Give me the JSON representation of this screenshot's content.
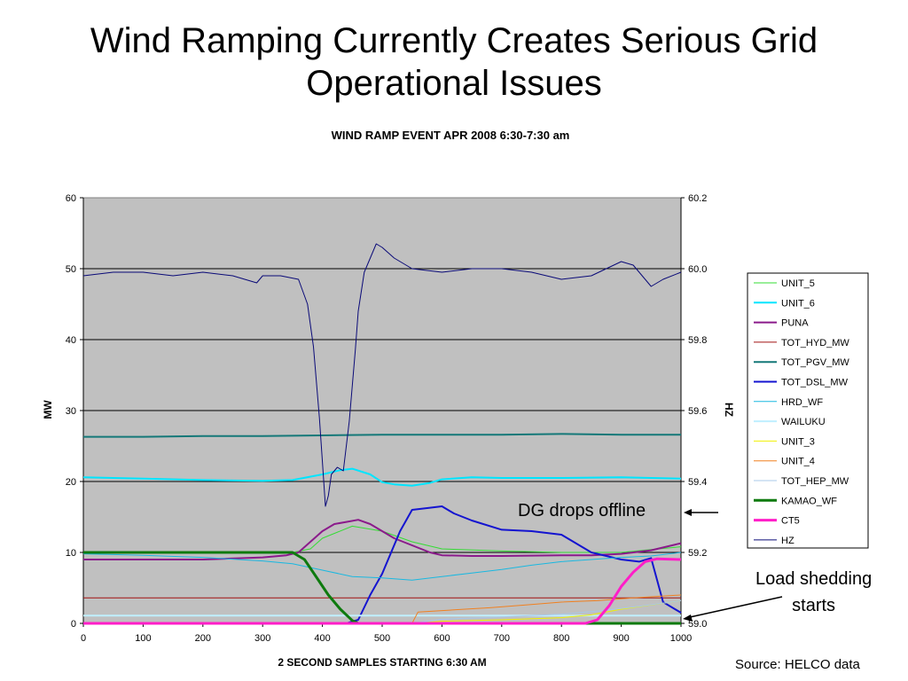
{
  "slide": {
    "title": "Wind Ramping Currently Creates Serious Grid\nOperational Issues",
    "annotation_dg": "DG drops offline",
    "annotation_load": "Load shedding\nstarts",
    "source": "Source: HELCO data"
  },
  "chart_data": {
    "type": "line",
    "title": "WIND RAMP EVENT APR 2008 6:30-7:30 am",
    "xlabel": "2 SECOND SAMPLES STARTING 6:30 AM",
    "ylabel": "MW",
    "y2label": "HZ",
    "xlim": [
      0,
      1000
    ],
    "ylim": [
      0,
      60
    ],
    "y2lim": [
      59.0,
      60.2
    ],
    "x_ticks": [
      "0",
      "100",
      "200",
      "300",
      "400",
      "500",
      "600",
      "700",
      "800",
      "900",
      "1000"
    ],
    "y_ticks": [
      "0",
      "10",
      "20",
      "30",
      "40",
      "50",
      "60"
    ],
    "y2_ticks": [
      "59.0",
      "59.2",
      "59.4",
      "59.6",
      "59.8",
      "60.0",
      "60.2"
    ],
    "grid": "horizontal",
    "legend_position": "right",
    "series": [
      {
        "name": "UNIT_5",
        "color": "#33dd33",
        "width": 1,
        "axis": "left",
        "x": [
          0,
          100,
          200,
          300,
          350,
          380,
          400,
          450,
          500,
          550,
          600,
          700,
          800,
          900,
          950,
          1000
        ],
        "y": [
          10,
          10,
          10,
          10,
          10,
          10.5,
          12,
          13.7,
          13,
          11.5,
          10.5,
          10.2,
          10,
          10,
          10.4,
          10.8
        ]
      },
      {
        "name": "UNIT_6",
        "color": "#00e5ff",
        "width": 2,
        "axis": "left",
        "x": [
          0,
          100,
          200,
          300,
          350,
          400,
          430,
          450,
          480,
          500,
          520,
          550,
          580,
          600,
          650,
          700,
          800,
          900,
          1000
        ],
        "y": [
          20.6,
          20.4,
          20.2,
          20.1,
          20.2,
          21,
          21.6,
          21.8,
          21,
          19.9,
          19.6,
          19.4,
          19.8,
          20.3,
          20.6,
          20.5,
          20.5,
          20.6,
          20.4
        ]
      },
      {
        "name": "PUNA",
        "color": "#8b1a8b",
        "width": 2,
        "axis": "left",
        "x": [
          0,
          100,
          200,
          300,
          340,
          360,
          380,
          400,
          420,
          440,
          460,
          480,
          500,
          520,
          550,
          580,
          600,
          650,
          700,
          800,
          850,
          900,
          950,
          1000
        ],
        "y": [
          9,
          9,
          9,
          9.3,
          9.6,
          10,
          11.5,
          13,
          14,
          14.3,
          14.6,
          14,
          13,
          12,
          11,
          10,
          9.6,
          9.5,
          9.5,
          9.6,
          9.6,
          9.8,
          10.3,
          11.3
        ]
      },
      {
        "name": "TOT_HYD_MW",
        "color": "#a01010",
        "width": 1,
        "axis": "left",
        "x": [
          0,
          1000
        ],
        "y": [
          3.6,
          3.6
        ]
      },
      {
        "name": "TOT_PGV_MW",
        "color": "#147878",
        "width": 2,
        "axis": "left",
        "x": [
          0,
          100,
          200,
          300,
          400,
          500,
          600,
          700,
          800,
          900,
          1000
        ],
        "y": [
          26.3,
          26.3,
          26.4,
          26.4,
          26.5,
          26.6,
          26.6,
          26.6,
          26.7,
          26.6,
          26.6
        ]
      },
      {
        "name": "TOT_DSL_MW",
        "color": "#1414d0",
        "width": 2,
        "axis": "left",
        "x": [
          0,
          400,
          440,
          460,
          480,
          500,
          530,
          550,
          580,
          600,
          620,
          650,
          700,
          750,
          800,
          850,
          900,
          930,
          950,
          970,
          1000
        ],
        "y": [
          0,
          0,
          0,
          0.5,
          4,
          7,
          13,
          16,
          16.3,
          16.5,
          15.5,
          14.5,
          13.2,
          13,
          12.5,
          10,
          9,
          8.7,
          9.2,
          3,
          1.5
        ]
      },
      {
        "name": "HRD_WF",
        "color": "#1ab8e0",
        "width": 1,
        "axis": "left",
        "x": [
          0,
          100,
          200,
          300,
          350,
          400,
          450,
          500,
          550,
          600,
          650,
          700,
          750,
          800,
          900,
          950,
          1000
        ],
        "y": [
          9.8,
          9.6,
          9.3,
          8.8,
          8.4,
          7.5,
          6.6,
          6.4,
          6.1,
          6.6,
          7.1,
          7.6,
          8.2,
          8.7,
          9.3,
          9.5,
          10
        ]
      },
      {
        "name": "WAILUKU",
        "color": "#bfefff",
        "width": 2,
        "axis": "left",
        "x": [
          0,
          1000
        ],
        "y": [
          1.1,
          1.1
        ]
      },
      {
        "name": "UNIT_3",
        "color": "#f0f000",
        "width": 1,
        "axis": "left",
        "x": [
          0,
          550,
          600,
          700,
          800,
          850,
          900,
          1000
        ],
        "y": [
          0,
          0,
          0.3,
          0.5,
          0.8,
          1.2,
          2,
          3.2
        ]
      },
      {
        "name": "UNIT_4",
        "color": "#f08020",
        "width": 1,
        "axis": "left",
        "x": [
          0,
          550,
          560,
          620,
          680,
          740,
          800,
          860,
          920,
          1000
        ],
        "y": [
          0,
          0,
          1.6,
          1.9,
          2.2,
          2.6,
          3,
          3.2,
          3.6,
          4
        ]
      },
      {
        "name": "TOT_HEP_MW",
        "color": "#a8c8e8",
        "width": 1,
        "axis": "left",
        "x": [
          0,
          550,
          600,
          700,
          800,
          870,
          930,
          1000
        ],
        "y": [
          0,
          0,
          0.6,
          0.9,
          1.3,
          1.8,
          2.4,
          3.2
        ]
      },
      {
        "name": "KAMAO_WF",
        "color": "#0e7a0e",
        "width": 3,
        "axis": "left",
        "x": [
          0,
          100,
          200,
          300,
          350,
          370,
          390,
          410,
          430,
          450,
          460,
          1000
        ],
        "y": [
          10,
          10,
          10,
          10,
          10,
          9,
          6.5,
          4,
          2,
          0.4,
          0,
          0
        ]
      },
      {
        "name": "CT5",
        "color": "#ff1ec8",
        "width": 3,
        "axis": "left",
        "x": [
          0,
          840,
          860,
          880,
          900,
          920,
          940,
          960,
          1000
        ],
        "y": [
          0,
          0,
          0.5,
          2.5,
          5.2,
          7.2,
          8.7,
          9.1,
          9
        ]
      },
      {
        "name": "HZ",
        "color": "#0a0a78",
        "width": 1,
        "axis": "right",
        "x": [
          0,
          50,
          100,
          150,
          200,
          250,
          290,
          300,
          330,
          360,
          375,
          385,
          395,
          405,
          410,
          415,
          425,
          435,
          445,
          455,
          460,
          470,
          490,
          500,
          520,
          550,
          600,
          650,
          700,
          750,
          800,
          850,
          900,
          920,
          950,
          970,
          1000
        ],
        "y": [
          59.98,
          59.99,
          59.99,
          59.98,
          59.99,
          59.98,
          59.96,
          59.98,
          59.98,
          59.97,
          59.9,
          59.78,
          59.58,
          59.33,
          59.36,
          59.42,
          59.44,
          59.43,
          59.57,
          59.77,
          59.88,
          59.99,
          60.07,
          60.06,
          60.03,
          60.0,
          59.99,
          60.0,
          60.0,
          59.99,
          59.97,
          59.98,
          60.02,
          60.01,
          59.95,
          59.97,
          59.99
        ]
      }
    ]
  }
}
